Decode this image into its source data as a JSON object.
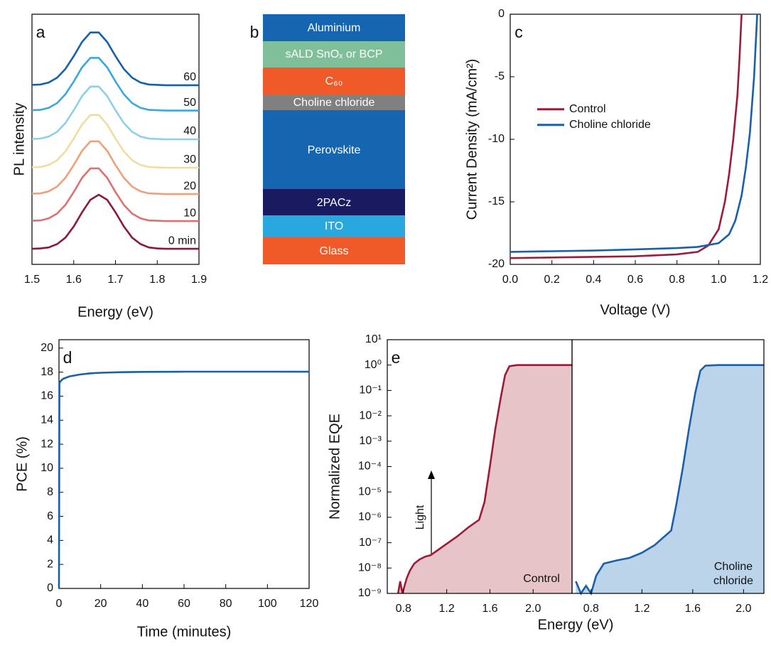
{
  "chart_data": [
    {
      "type": "line",
      "label": "a",
      "xlabel": "Energy (eV)",
      "ylabel": "PL intensity",
      "xlim": [
        1.5,
        1.9
      ],
      "xticks": [
        1.5,
        1.6,
        1.7,
        1.8,
        1.9
      ],
      "ylim": [
        0,
        7.4
      ],
      "yticks": [],
      "series_labels": "end",
      "x": [
        1.5,
        1.52,
        1.54,
        1.56,
        1.58,
        1.6,
        1.62,
        1.64,
        1.66,
        1.68,
        1.7,
        1.72,
        1.74,
        1.76,
        1.78,
        1.8,
        1.82,
        1.84,
        1.86,
        1.88,
        1.9
      ],
      "series": [
        {
          "name": "0 min",
          "color": "#8b1a3a",
          "values": [
            0.46,
            0.47,
            0.5,
            0.6,
            0.79,
            1.12,
            1.54,
            1.91,
            2.06,
            1.91,
            1.54,
            1.12,
            0.79,
            0.6,
            0.5,
            0.47,
            0.46,
            0.46,
            0.46,
            0.46,
            0.46
          ]
        },
        {
          "name": "10",
          "color": "#e07070",
          "values": [
            1.29,
            1.3,
            1.36,
            1.5,
            1.76,
            2.14,
            2.56,
            2.84,
            2.84,
            2.56,
            2.14,
            1.76,
            1.5,
            1.36,
            1.3,
            1.29,
            1.28,
            1.28,
            1.28,
            1.28,
            1.28
          ]
        },
        {
          "name": "20",
          "color": "#eea07a",
          "values": [
            2.09,
            2.1,
            2.16,
            2.3,
            2.56,
            2.94,
            3.36,
            3.64,
            3.64,
            3.36,
            2.94,
            2.56,
            2.3,
            2.16,
            2.1,
            2.09,
            2.08,
            2.08,
            2.08,
            2.08,
            2.08
          ]
        },
        {
          "name": "30",
          "color": "#f0dca0",
          "values": [
            2.87,
            2.88,
            2.94,
            3.08,
            3.34,
            3.72,
            4.14,
            4.42,
            4.42,
            4.14,
            3.72,
            3.34,
            3.08,
            2.94,
            2.88,
            2.87,
            2.86,
            2.86,
            2.86,
            2.86,
            2.86
          ]
        },
        {
          "name": "40",
          "color": "#8ecfe8",
          "values": [
            3.71,
            3.72,
            3.78,
            3.92,
            4.18,
            4.56,
            4.98,
            5.26,
            5.26,
            4.98,
            4.56,
            4.18,
            3.92,
            3.78,
            3.72,
            3.71,
            3.7,
            3.7,
            3.7,
            3.7,
            3.7
          ]
        },
        {
          "name": "50",
          "color": "#3aa8e0",
          "values": [
            4.56,
            4.57,
            4.63,
            4.77,
            5.03,
            5.41,
            5.83,
            6.11,
            6.11,
            5.83,
            5.41,
            5.03,
            4.77,
            4.63,
            4.57,
            4.56,
            4.55,
            4.55,
            4.55,
            4.55,
            4.55
          ]
        },
        {
          "name": "60",
          "color": "#1560a8",
          "values": [
            5.31,
            5.32,
            5.38,
            5.52,
            5.78,
            6.16,
            6.58,
            6.86,
            6.86,
            6.58,
            6.16,
            5.78,
            5.52,
            5.38,
            5.32,
            5.31,
            5.3,
            5.3,
            5.3,
            5.3,
            5.3
          ]
        }
      ]
    },
    {
      "type": "line",
      "label": "c",
      "xlabel": "Voltage (V)",
      "ylabel": "Current Density (mA/cm²)",
      "xlim": [
        0,
        1.2
      ],
      "xticks": [
        {
          "value": 0,
          "label": "0.0"
        },
        0.2,
        0.4,
        0.6,
        0.8,
        {
          "value": 1,
          "label": "1.0"
        },
        1.2
      ],
      "ylim": [
        -20,
        0
      ],
      "yticks": [
        0,
        -5,
        -10,
        -15,
        -20
      ],
      "legend": "center left",
      "series": [
        {
          "name": "Control",
          "color": "#9b1b3a",
          "x": [
            0,
            0.2,
            0.4,
            0.6,
            0.8,
            0.9,
            0.95,
            1.0,
            1.03,
            1.05,
            1.07,
            1.09,
            1.1,
            1.11
          ],
          "values": [
            -19.5,
            -19.45,
            -19.4,
            -19.35,
            -19.2,
            -19.0,
            -18.5,
            -17.2,
            -15,
            -12.8,
            -10,
            -6.5,
            -3.5,
            0
          ]
        },
        {
          "name": "Choline chloride",
          "color": "#1a5fa8",
          "x": [
            0,
            0.2,
            0.4,
            0.6,
            0.8,
            0.9,
            1.0,
            1.05,
            1.08,
            1.11,
            1.13,
            1.15,
            1.17,
            1.185
          ],
          "values": [
            -19,
            -18.95,
            -18.9,
            -18.8,
            -18.7,
            -18.6,
            -18.3,
            -17.6,
            -16.5,
            -14.5,
            -12.3,
            -9.5,
            -5,
            0
          ]
        }
      ]
    },
    {
      "type": "line",
      "label": "d",
      "xlabel": "Time (minutes)",
      "ylabel": "PCE (%)",
      "xlim": [
        0,
        120
      ],
      "xticks": [
        0,
        20,
        40,
        60,
        80,
        100,
        120
      ],
      "ylim": [
        0,
        20.7
      ],
      "yticks": [
        0,
        2,
        4,
        6,
        8,
        10,
        12,
        14,
        16,
        18,
        20
      ],
      "color": "#1a5fa8",
      "x": [
        0,
        0.2,
        1,
        2,
        5,
        10,
        15,
        20,
        30,
        40,
        60,
        80,
        100,
        120
      ],
      "values": [
        0,
        17.1,
        17.3,
        17.45,
        17.65,
        17.8,
        17.9,
        17.95,
        18.0,
        18.02,
        18.04,
        18.04,
        18.04,
        18.03
      ]
    },
    {
      "type": "area",
      "label": "e",
      "xlabel": "Energy (eV)",
      "ylabel": "Normalized EQE",
      "log_y": true,
      "ylim": [
        1e-09,
        10
      ],
      "yticks": [
        {
          "value": 10,
          "label": "10¹"
        },
        {
          "value": 1,
          "label": "10⁰"
        },
        {
          "value": 0.1,
          "label": "10⁻¹"
        },
        {
          "value": 0.01,
          "label": "10⁻²"
        },
        {
          "value": 0.001,
          "label": "10⁻³"
        },
        {
          "value": 0.0001,
          "label": "10⁻⁴"
        },
        {
          "value": 1e-05,
          "label": "10⁻⁵"
        },
        {
          "value": 1e-06,
          "label": "10⁻⁶"
        },
        {
          "value": 1e-07,
          "label": "10⁻⁷"
        },
        {
          "value": 1e-08,
          "label": "10⁻⁸"
        },
        {
          "value": 1e-09,
          "label": "10⁻⁹"
        }
      ],
      "xticks": [
        0.8,
        1.2,
        1.6,
        {
          "value": 2,
          "label": "2.0"
        }
      ],
      "annotations": [
        "Light",
        "Control",
        "Choline",
        "chloride"
      ],
      "series": [
        {
          "color": "#9b1b3a",
          "fill": "#e6c4c8",
          "xlim": [
            0.65,
            2.36
          ],
          "x": [
            0.75,
            0.77,
            0.79,
            0.81,
            0.83,
            0.86,
            0.9,
            0.95,
            1.0,
            1.05,
            1.1,
            1.2,
            1.3,
            1.4,
            1.5,
            1.55,
            1.6,
            1.65,
            1.7,
            1.74,
            1.78,
            1.85,
            2.0,
            2.36
          ],
          "values": [
            1e-09,
            3e-09,
            1e-09,
            2e-09,
            4e-09,
            8e-09,
            1.5e-08,
            2.2e-08,
            2.8e-08,
            3.2e-08,
            4.5e-08,
            9e-08,
            1.8e-07,
            4e-07,
            8e-07,
            4e-06,
            0.0001,
            0.003,
            0.05,
            0.4,
            0.9,
            1.0,
            1.0,
            1.0
          ]
        },
        {
          "color": "#1a5fa8",
          "fill": "#bcd4ea",
          "xlim": [
            0.65,
            2.16
          ],
          "x": [
            0.68,
            0.72,
            0.76,
            0.8,
            0.84,
            0.9,
            1.0,
            1.1,
            1.2,
            1.3,
            1.38,
            1.43,
            1.47,
            1.52,
            1.57,
            1.62,
            1.66,
            1.7,
            1.8,
            2.0,
            2.16
          ],
          "values": [
            3e-09,
            1e-09,
            2e-09,
            1e-09,
            5e-09,
            1.5e-08,
            2e-08,
            2.5e-08,
            4e-08,
            8e-08,
            1.8e-07,
            3e-07,
            3e-06,
            8e-05,
            0.003,
            0.08,
            0.6,
            0.95,
            1.0,
            1.0,
            1.0
          ]
        }
      ]
    }
  ],
  "diagram": {
    "label": "b",
    "layers": [
      "Aluminium",
      "sALD SnOₓ or BCP",
      "C₆₀",
      "Choline chloride",
      "Perovskite",
      "2PACz",
      "ITO",
      "Glass"
    ]
  }
}
